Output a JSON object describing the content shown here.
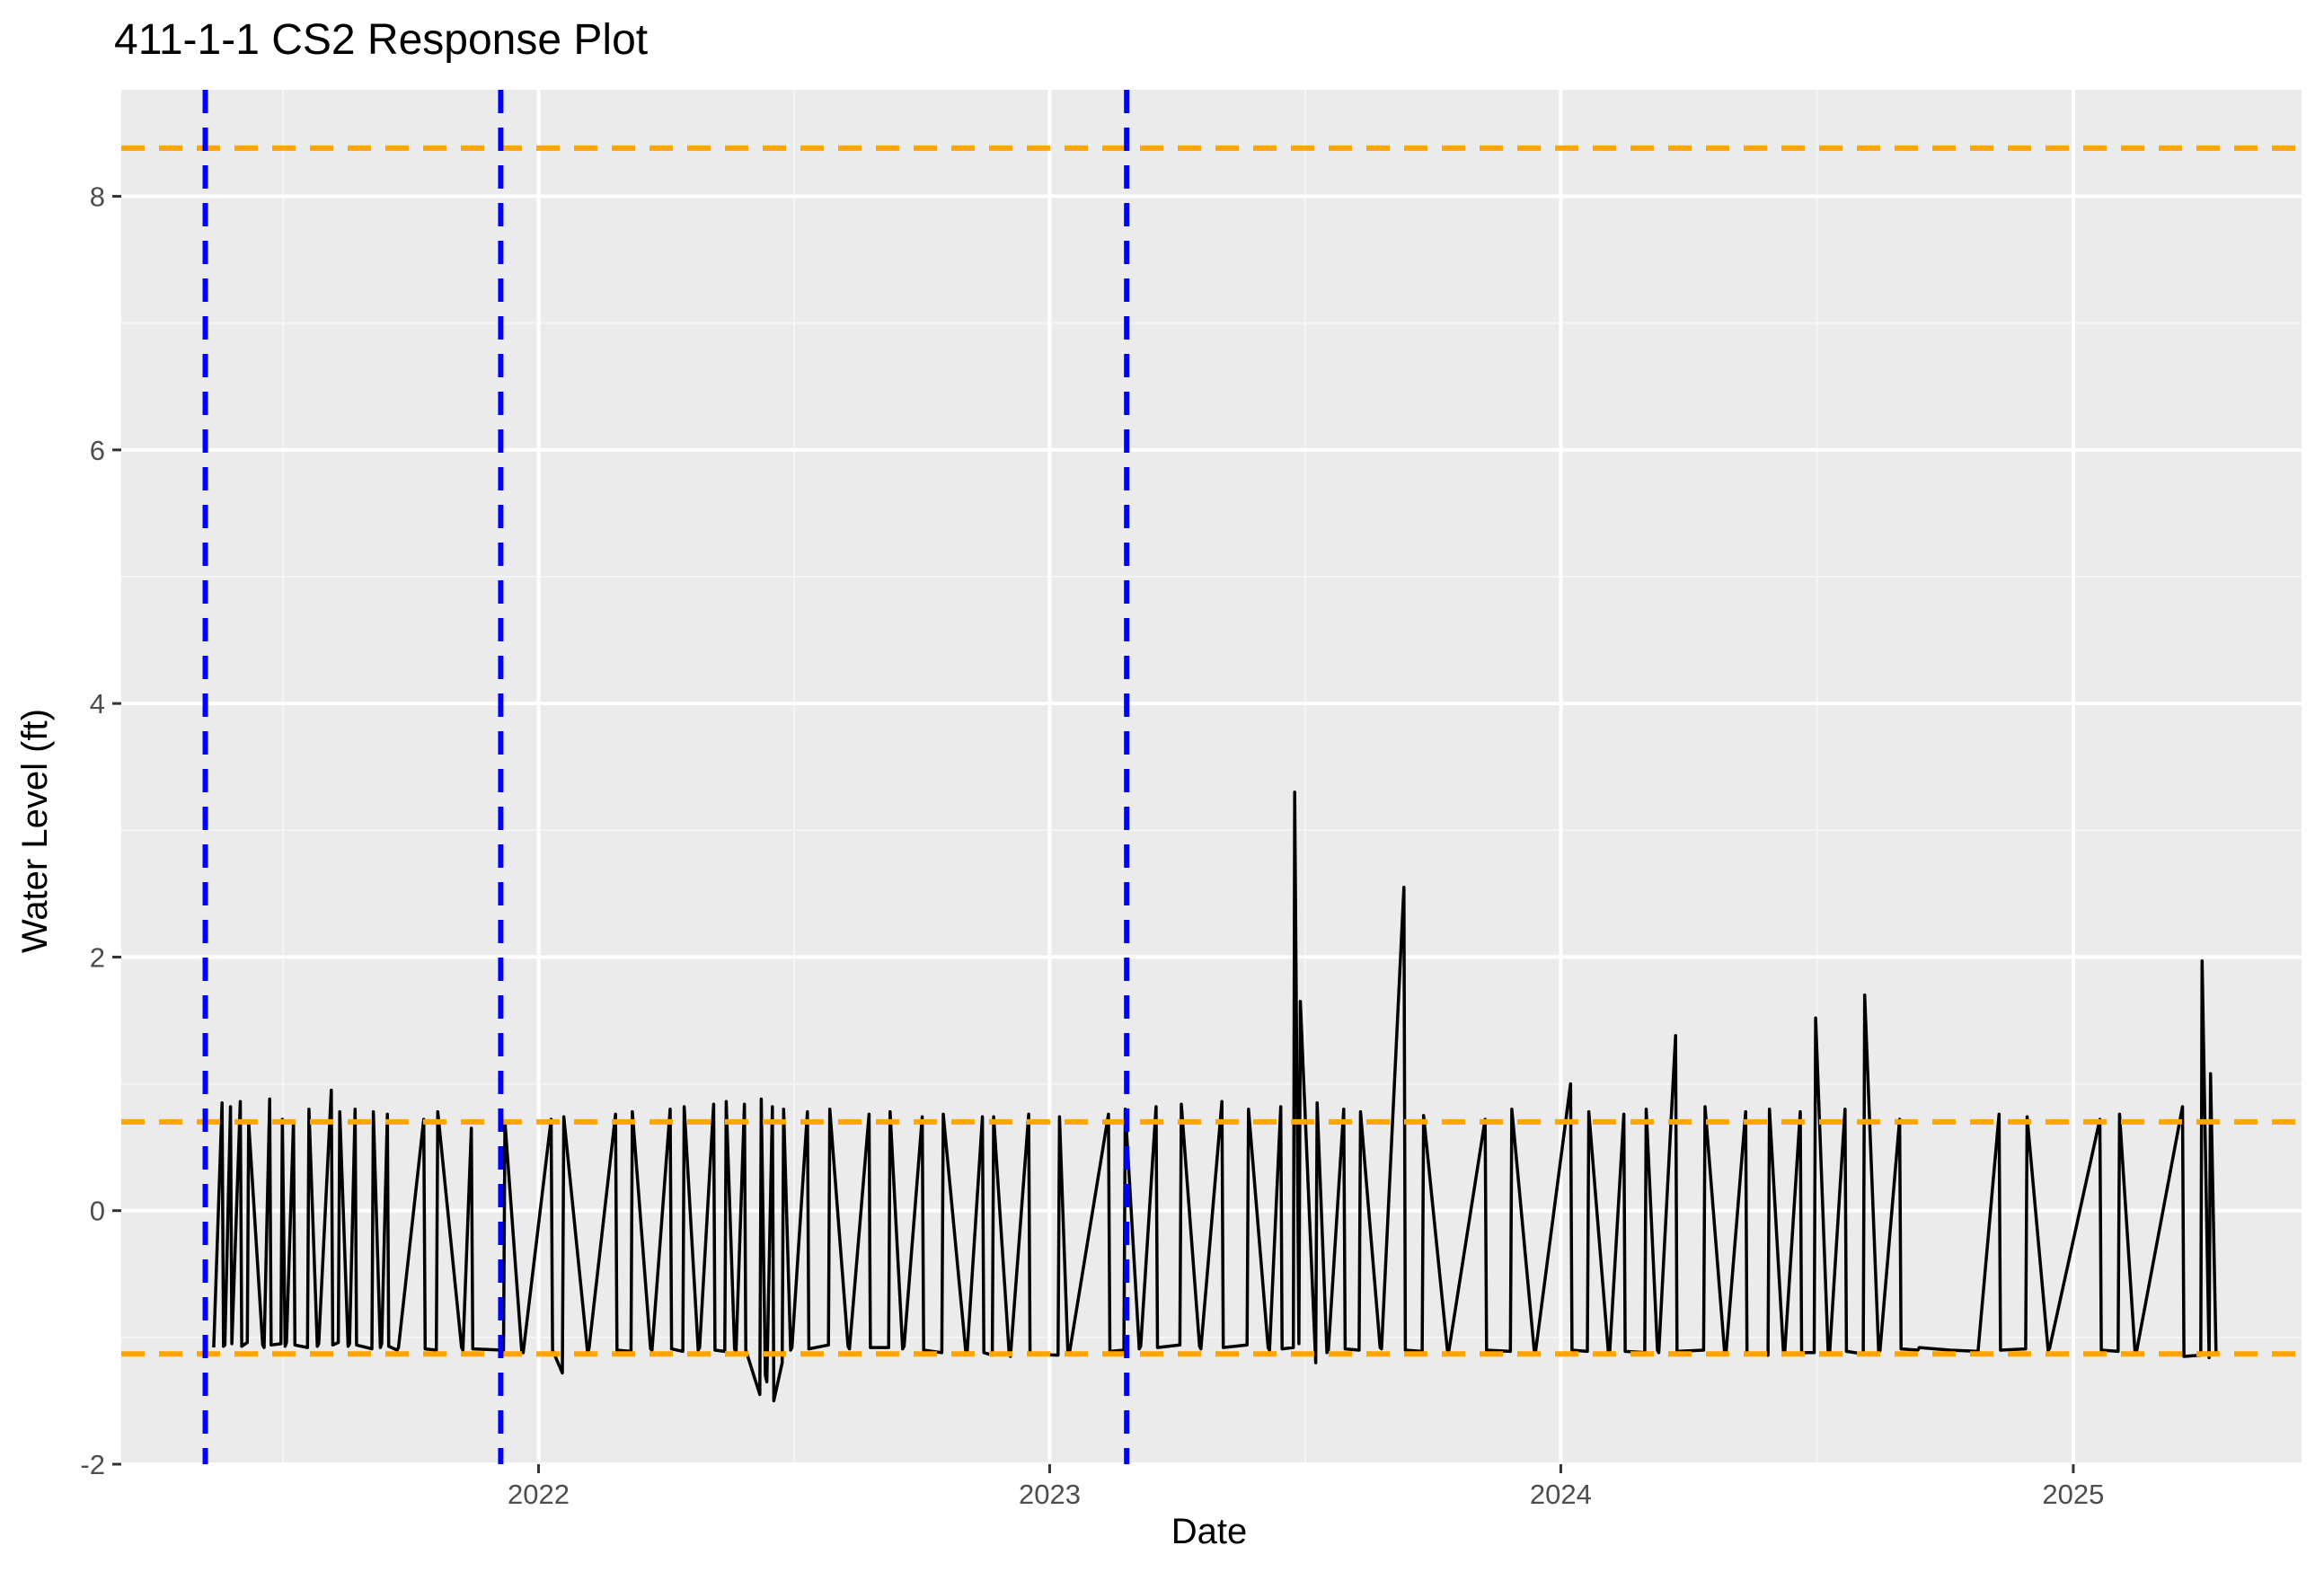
{
  "chart_data": {
    "type": "line",
    "title": "411-1-1 CS2 Response Plot",
    "xlabel": "Date",
    "ylabel": "Water Level (ft)",
    "x_type": "date",
    "xlim": [
      "2021-03-09",
      "2025-06-13"
    ],
    "ylim": [
      -2.0,
      8.84
    ],
    "x_ticks": [
      {
        "date": "2022-01-01",
        "label": "2022"
      },
      {
        "date": "2023-01-01",
        "label": "2023"
      },
      {
        "date": "2024-01-01",
        "label": "2024"
      },
      {
        "date": "2025-01-01",
        "label": "2025"
      }
    ],
    "y_ticks": [
      {
        "value": -2,
        "label": "-2"
      },
      {
        "value": 0,
        "label": "0"
      },
      {
        "value": 2,
        "label": "2"
      },
      {
        "value": 4,
        "label": "4"
      },
      {
        "value": 6,
        "label": "6"
      },
      {
        "value": 8,
        "label": "8"
      }
    ],
    "grid": true,
    "colors": {
      "panel_background": "#ebebeb",
      "grid_major": "#ffffff",
      "grid_minor": "#f5f5f5",
      "series": "#000000",
      "reference_horizontal": "#FFA500",
      "reference_vertical": "#0000FF"
    },
    "reference_lines_horizontal": [
      8.38,
      0.7,
      -1.13
    ],
    "reference_lines_vertical": [
      "2021-05-08",
      "2021-12-05",
      "2023-02-25"
    ],
    "series": [
      {
        "x": [
          "2021-05-14",
          "2021-05-20",
          "2021-05-21",
          "2021-05-22",
          "2021-05-26",
          "2021-05-27",
          "2021-06-02",
          "2021-06-03",
          "2021-06-07",
          "2021-06-08",
          "2021-06-18",
          "2021-06-19",
          "2021-06-23",
          "2021-06-24",
          "2021-07-01",
          "2021-07-02",
          "2021-07-04",
          "2021-07-05",
          "2021-07-10",
          "2021-07-11",
          "2021-07-20",
          "2021-07-21",
          "2021-07-27",
          "2021-07-28",
          "2021-08-06",
          "2021-08-07",
          "2021-08-11",
          "2021-08-12",
          "2021-08-18",
          "2021-08-19",
          "2021-08-23",
          "2021-08-24",
          "2021-09-04",
          "2021-09-05",
          "2021-09-10",
          "2021-09-11",
          "2021-09-15",
          "2021-09-16",
          "2021-09-22",
          "2021-09-23",
          "2021-10-11",
          "2021-10-12",
          "2021-10-20",
          "2021-10-21",
          "2021-11-07",
          "2021-11-08",
          "2021-11-14",
          "2021-11-15",
          "2021-12-07",
          "2021-12-08",
          "2021-12-20",
          "2021-12-21",
          "2022-01-10",
          "2022-01-11",
          "2022-01-18",
          "2022-01-19",
          "2022-02-05",
          "2022-02-06",
          "2022-02-25",
          "2022-02-26",
          "2022-03-08",
          "2022-03-09",
          "2022-03-22",
          "2022-03-23",
          "2022-04-05",
          "2022-04-06",
          "2022-04-14",
          "2022-04-15",
          "2022-04-25",
          "2022-04-26",
          "2022-05-06",
          "2022-05-07",
          "2022-05-14",
          "2022-05-15",
          "2022-05-21",
          "2022-05-22",
          "2022-05-28",
          "2022-05-29",
          "2022-06-08",
          "2022-06-09",
          "2022-06-12",
          "2022-06-13",
          "2022-06-17",
          "2022-06-18",
          "2022-06-24",
          "2022-06-25",
          "2022-06-30",
          "2022-07-01",
          "2022-07-12",
          "2022-07-13",
          "2022-07-27",
          "2022-07-28",
          "2022-08-10",
          "2022-08-11",
          "2022-08-25",
          "2022-08-26",
          "2022-09-08",
          "2022-09-09",
          "2022-09-18",
          "2022-09-19",
          "2022-10-02",
          "2022-10-03",
          "2022-10-16",
          "2022-10-17",
          "2022-11-02",
          "2022-11-03",
          "2022-11-14",
          "2022-11-15",
          "2022-11-21",
          "2022-11-22",
          "2022-12-03",
          "2022-12-04",
          "2022-12-17",
          "2022-12-18",
          "2023-01-07",
          "2023-01-08",
          "2023-01-14",
          "2023-01-15",
          "2023-02-12",
          "2023-02-13",
          "2023-02-23",
          "2023-02-24",
          "2023-03-06",
          "2023-03-07",
          "2023-03-18",
          "2023-03-19",
          "2023-04-04",
          "2023-04-05",
          "2023-04-18",
          "2023-04-19",
          "2023-05-04",
          "2023-05-05",
          "2023-05-22",
          "2023-05-23",
          "2023-06-06",
          "2023-06-07",
          "2023-06-15",
          "2023-06-16",
          "2023-06-24",
          "2023-06-25",
          "2023-06-28",
          "2023-06-29",
          "2023-07-10",
          "2023-07-11",
          "2023-07-18",
          "2023-07-19",
          "2023-07-30",
          "2023-07-31",
          "2023-08-10",
          "2023-08-11",
          "2023-08-25",
          "2023-08-26",
          "2023-09-11",
          "2023-09-12",
          "2023-09-24",
          "2023-09-25",
          "2023-10-12",
          "2023-10-13",
          "2023-11-08",
          "2023-11-09",
          "2023-11-26",
          "2023-11-27",
          "2023-12-13",
          "2023-12-14",
          "2024-01-08",
          "2024-01-09",
          "2024-01-20",
          "2024-01-21",
          "2024-02-04",
          "2024-02-05",
          "2024-02-15",
          "2024-02-16",
          "2024-03-01",
          "2024-03-02",
          "2024-03-10",
          "2024-03-11",
          "2024-03-23",
          "2024-03-24",
          "2024-04-12",
          "2024-04-13",
          "2024-04-27",
          "2024-04-28",
          "2024-05-12",
          "2024-05-13",
          "2024-05-28",
          "2024-05-29",
          "2024-06-08",
          "2024-06-09",
          "2024-06-20",
          "2024-06-21",
          "2024-06-30",
          "2024-07-01",
          "2024-07-10",
          "2024-07-11",
          "2024-07-22",
          "2024-07-23",
          "2024-08-04",
          "2024-08-05",
          "2024-08-15",
          "2024-08-16",
          "2024-08-30",
          "2024-08-31",
          "2024-09-12",
          "2024-09-13",
          "2024-10-05",
          "2024-10-25",
          "2024-11-09",
          "2024-11-10",
          "2024-11-28",
          "2024-11-29",
          "2024-12-14",
          "2024-12-15",
          "2025-01-20",
          "2025-01-21",
          "2025-02-02",
          "2025-02-03",
          "2025-02-14",
          "2025-02-15",
          "2025-03-20",
          "2025-03-21",
          "2025-04-02",
          "2025-04-03",
          "2025-04-08",
          "2025-04-09",
          "2025-04-13"
        ],
        "y": [
          -1.08,
          0.85,
          -1.07,
          -1.06,
          0.82,
          -1.05,
          0.86,
          -1.07,
          -1.04,
          0.7,
          -1.06,
          -1.08,
          0.88,
          -1.06,
          -1.05,
          0.72,
          -1.07,
          -1.04,
          0.7,
          -1.06,
          -1.08,
          0.8,
          -1.07,
          -1.05,
          0.95,
          -1.06,
          -1.04,
          0.78,
          -1.07,
          -1.05,
          0.8,
          -1.06,
          -1.09,
          0.78,
          -1.08,
          -1.05,
          0.76,
          -1.07,
          -1.1,
          -1.08,
          0.72,
          -1.09,
          -1.1,
          0.78,
          -1.08,
          -1.1,
          0.65,
          -1.09,
          -1.1,
          0.7,
          -1.11,
          -1.12,
          0.72,
          -1.1,
          -1.28,
          0.74,
          -1.12,
          -1.09,
          0.76,
          -1.1,
          -1.11,
          0.78,
          -1.09,
          -1.1,
          0.8,
          -1.09,
          -1.11,
          0.82,
          -1.1,
          -1.08,
          0.84,
          -1.1,
          -1.11,
          0.86,
          -1.09,
          -1.12,
          0.84,
          -1.1,
          -1.45,
          0.88,
          -1.3,
          -1.35,
          0.82,
          -1.5,
          -1.2,
          0.8,
          -1.1,
          -1.08,
          0.78,
          -1.09,
          -1.06,
          0.8,
          -1.07,
          -1.09,
          0.76,
          -1.08,
          -1.08,
          0.78,
          -1.09,
          -1.07,
          0.74,
          -1.1,
          -1.12,
          0.76,
          -1.1,
          -1.13,
          0.74,
          -1.12,
          -1.14,
          0.74,
          -1.12,
          -1.15,
          0.76,
          -1.13,
          -1.14,
          0.74,
          -1.12,
          -1.13,
          0.76,
          -1.11,
          -1.1,
          0.8,
          -1.09,
          -1.07,
          0.82,
          -1.08,
          -1.06,
          0.84,
          -1.07,
          -1.09,
          0.86,
          -1.08,
          -1.06,
          0.8,
          -1.08,
          -1.1,
          0.82,
          -1.09,
          -1.08,
          3.3,
          -1.05,
          1.65,
          -1.2,
          0.85,
          -1.12,
          -1.1,
          0.8,
          -1.09,
          -1.1,
          0.78,
          -1.08,
          -1.09,
          2.55,
          -1.1,
          -1.11,
          0.75,
          -1.1,
          -1.11,
          0.72,
          -1.1,
          -1.11,
          0.8,
          -1.1,
          -1.11,
          1.0,
          -1.1,
          -1.11,
          0.78,
          -1.12,
          -1.1,
          0.76,
          -1.11,
          -1.12,
          0.8,
          -1.1,
          -1.12,
          1.38,
          -1.11,
          -1.1,
          0.82,
          -1.12,
          -1.13,
          0.78,
          -1.12,
          -1.14,
          0.8,
          -1.12,
          -1.11,
          0.78,
          -1.12,
          -1.12,
          1.52,
          -1.13,
          -1.12,
          0.8,
          -1.11,
          -1.13,
          1.7,
          -1.12,
          -1.1,
          0.72,
          -1.09,
          -1.1,
          -1.08,
          -1.1,
          -1.11,
          0.76,
          -1.1,
          -1.09,
          0.74,
          -1.1,
          -1.09,
          0.72,
          -1.1,
          -1.11,
          0.76,
          -1.1,
          -1.12,
          0.82,
          -1.15,
          -1.14,
          1.97,
          -1.16,
          1.08,
          -1.15
        ]
      }
    ]
  }
}
